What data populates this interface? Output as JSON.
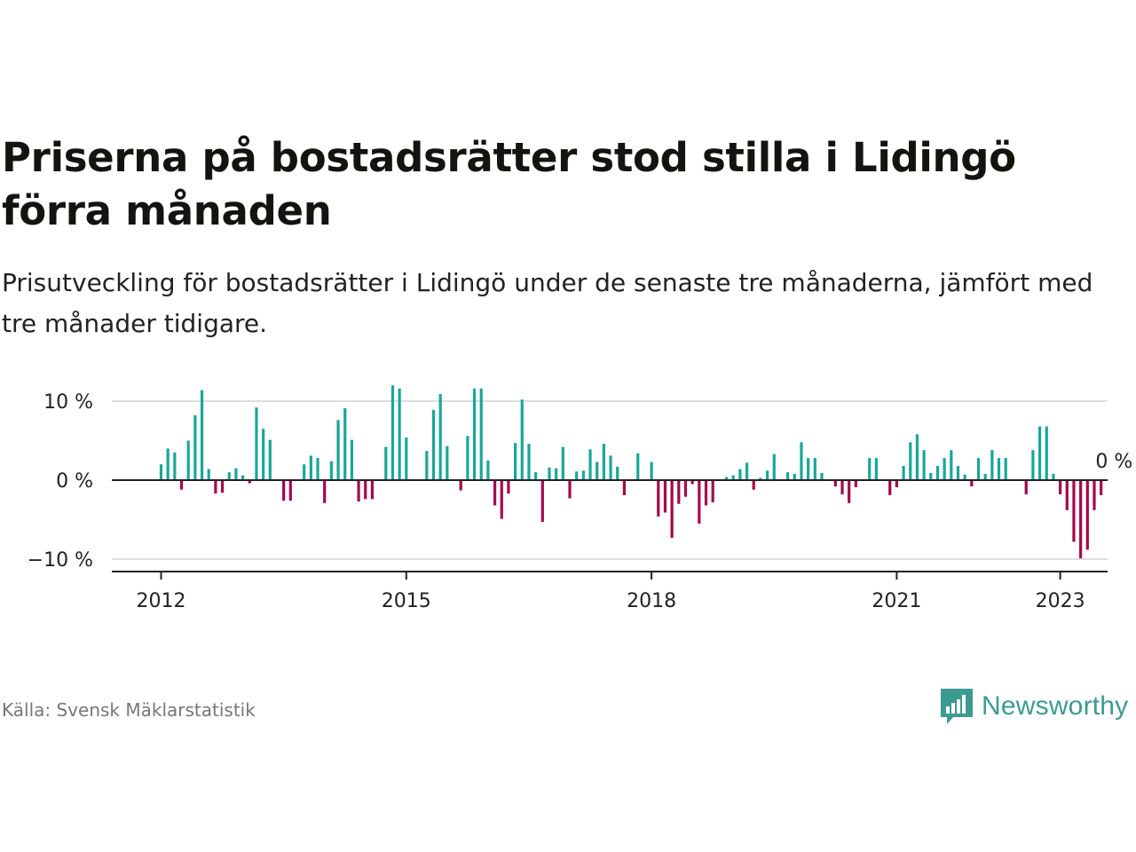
{
  "header": {
    "title": "Priserna på bostadsrätter stod stilla i Lidingö förra månaden",
    "subtitle": "Prisutveckling för bostadsrätter i Lidingö under de senaste tre månaderna, jämfört med tre månader tidigare."
  },
  "footer": {
    "source": "Källa: Svensk Mäklarstatistik",
    "brand": "Newsworthy"
  },
  "colors": {
    "positive": "#1aa69b",
    "negative": "#a5064a",
    "axis": "#222222",
    "grid": "#dddddd"
  },
  "chart_data": {
    "type": "bar",
    "x_unit": "month",
    "start": "2012-01",
    "ylim": [
      -11,
      11
    ],
    "y_ticks": [
      {
        "value": 10,
        "label": "10 %"
      },
      {
        "value": 0,
        "label": "0 %"
      },
      {
        "value": -10,
        "label": "−10 %"
      }
    ],
    "x_ticks": [
      {
        "date": "2012-01",
        "label": "2012"
      },
      {
        "date": "2015-01",
        "label": "2015"
      },
      {
        "date": "2018-01",
        "label": "2018"
      },
      {
        "date": "2021-01",
        "label": "2021"
      },
      {
        "date": "2023-01",
        "label": "2023"
      }
    ],
    "last_label": "0 %",
    "values": [
      2,
      4,
      3.5,
      -1.2,
      5,
      8.2,
      11.4,
      1.4,
      -1.7,
      -1.6,
      1,
      1.5,
      0.6,
      -0.4,
      9.2,
      6.5,
      5.1,
      0,
      -2.6,
      -2.6,
      0,
      2,
      3.1,
      2.8,
      -2.9,
      2.4,
      7.6,
      9.1,
      5.1,
      -2.7,
      -2.4,
      -2.4,
      0,
      4.2,
      12,
      11.6,
      5.4,
      0,
      0,
      3.7,
      8.9,
      10.9,
      4.3,
      0,
      -1.3,
      5.6,
      11.6,
      11.6,
      2.5,
      -3.2,
      -4.9,
      -1.7,
      4.7,
      10.2,
      4.6,
      1,
      -5.3,
      1.6,
      1.5,
      4.2,
      -2.3,
      1.1,
      1.2,
      3.9,
      2.3,
      4.6,
      3.1,
      1.7,
      -1.9,
      0,
      3.4,
      0,
      2.3,
      -4.6,
      -4.1,
      -7.3,
      -3,
      -2.1,
      -0.5,
      -5.5,
      -3.2,
      -2.8,
      0,
      0.4,
      0.6,
      1.4,
      2.2,
      -1.2,
      0.3,
      1.2,
      3.3,
      0,
      1,
      0.8,
      4.8,
      2.8,
      2.8,
      0.9,
      0,
      -0.8,
      -1.8,
      -2.9,
      -0.9,
      0,
      2.8,
      2.8,
      0,
      -1.9,
      -0.9,
      1.8,
      4.8,
      5.8,
      3.8,
      0.9,
      1.8,
      2.8,
      3.8,
      1.8,
      0.7,
      -0.8,
      2.8,
      0.8,
      3.8,
      2.8,
      2.8,
      0,
      0,
      -1.8,
      3.8,
      6.8,
      6.8,
      0.8,
      -1.8,
      -3.8,
      -7.8,
      -9.9,
      -8.8,
      -3.8,
      -1.9,
      0
    ]
  }
}
